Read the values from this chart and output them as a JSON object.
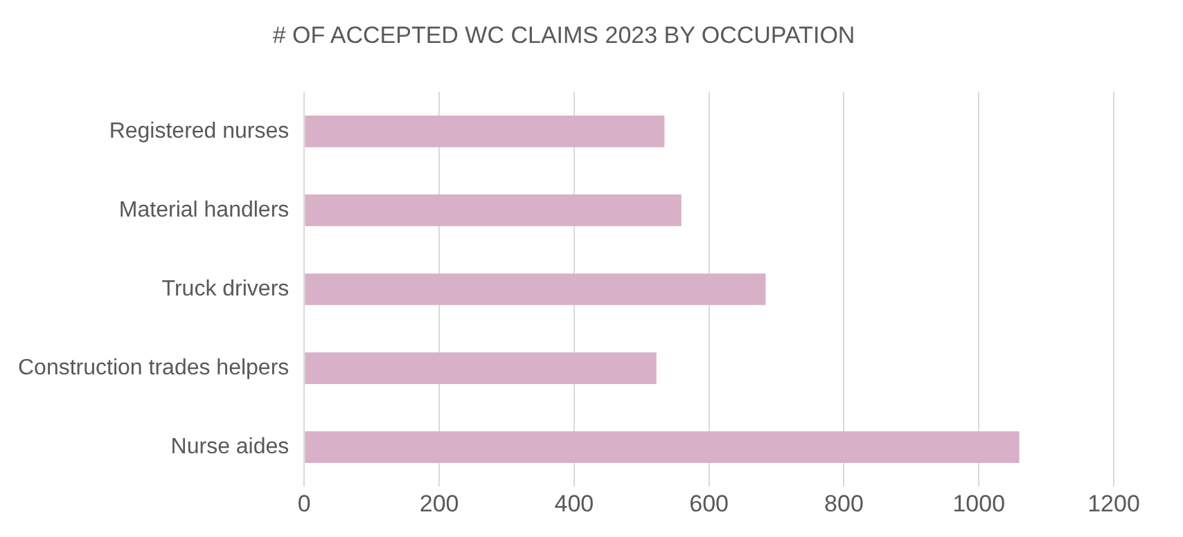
{
  "chart_data": {
    "type": "bar",
    "orientation": "horizontal",
    "title": "# OF ACCEPTED WC CLAIMS 2023 BY OCCUPATION",
    "categories": [
      "Registered nurses",
      "Material handlers",
      "Truck drivers",
      "Construction trades helpers",
      "Nurse aides"
    ],
    "values": [
      534,
      559,
      684,
      522,
      1060
    ],
    "color": "#d8b0c8",
    "xlim": [
      0,
      1200
    ],
    "xticks": [
      0,
      200,
      400,
      600,
      800,
      1000,
      1200
    ],
    "grid": "x"
  }
}
